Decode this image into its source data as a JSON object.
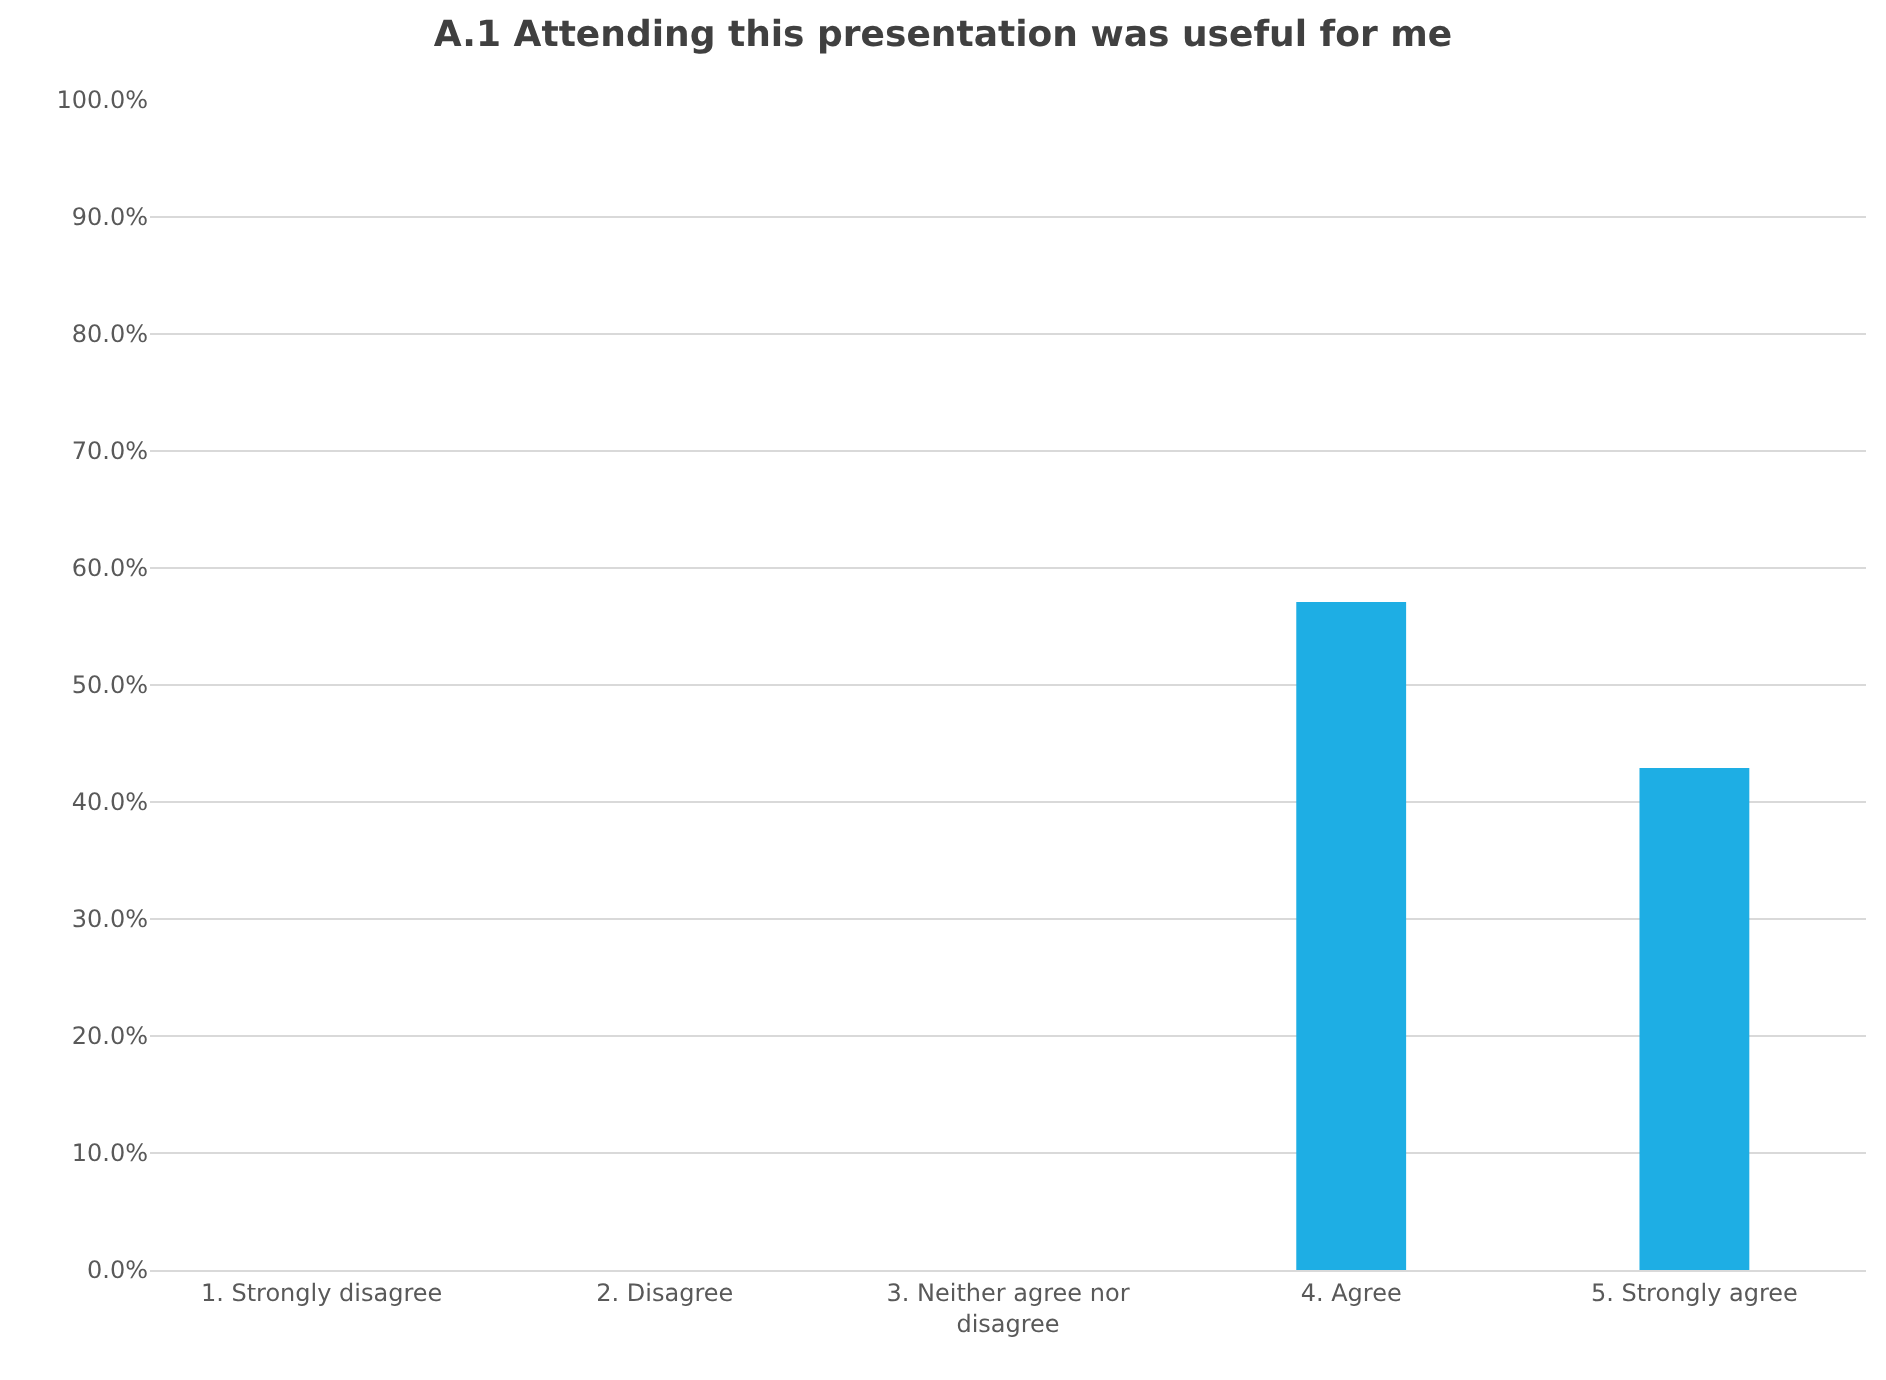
{
  "chart_data": {
    "type": "bar",
    "title": "A.1 Attending this presentation was useful for me",
    "categories": [
      "1. Strongly disagree",
      "2. Disagree",
      "3. Neither agree nor disagree",
      "4. Agree",
      "5. Strongly agree"
    ],
    "values": [
      0,
      0,
      0,
      57.1,
      42.9
    ],
    "color": "#1eaee4",
    "ylim": [
      0,
      100
    ],
    "yticks": [
      {
        "value": 0,
        "label": "0.0%"
      },
      {
        "value": 10,
        "label": "10.0%"
      },
      {
        "value": 20,
        "label": "20.0%"
      },
      {
        "value": 30,
        "label": "30.0%"
      },
      {
        "value": 40,
        "label": "40.0%"
      },
      {
        "value": 50,
        "label": "50.0%"
      },
      {
        "value": 60,
        "label": "60.0%"
      },
      {
        "value": 70,
        "label": "70.0%"
      },
      {
        "value": 80,
        "label": "80.0%"
      },
      {
        "value": 90,
        "label": "90.0%"
      },
      {
        "value": 100,
        "label": "100.0%"
      }
    ],
    "grid": "y"
  }
}
